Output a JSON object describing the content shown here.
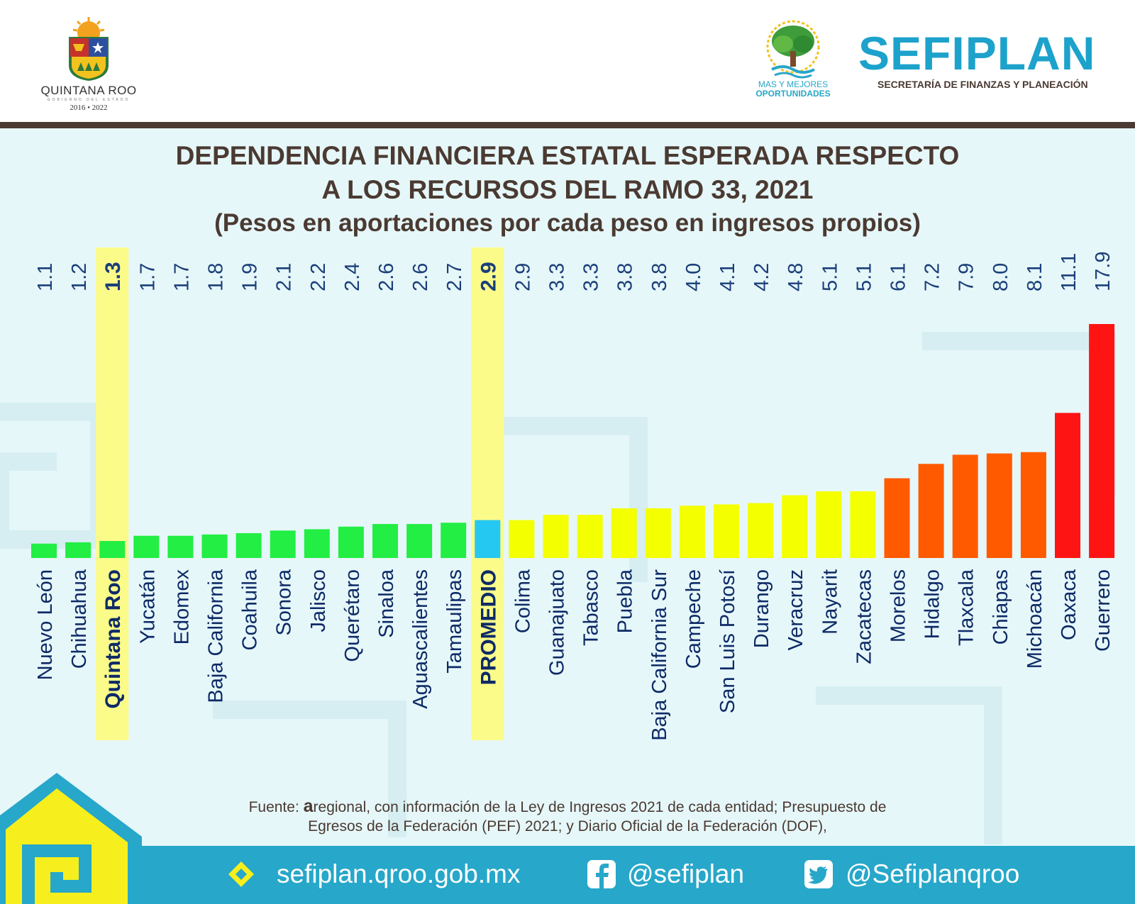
{
  "header": {
    "state_logo_name": "QUINTANA ROO",
    "state_logo_sub": "GOBIERNO DEL ESTADO",
    "state_logo_years": "2016 • 2022",
    "campaign_line1": "MAS Y MEJORES",
    "campaign_line2": "OPORTUNIDADES",
    "agency_name": "SEFIPLAN",
    "agency_subtitle": "SECRETARÍA DE FINANZAS Y PLANEACIÓN"
  },
  "colors": {
    "header_rule": "#4a3a32",
    "panel_bg": "#e6f7f9",
    "title_text": "#4a3a32",
    "value_text": "#1b3f7a",
    "label_text": "#0d2a66",
    "highlight": "#fbfb8a",
    "green": "#22ee44",
    "cyan": "#25c8f0",
    "yellow": "#f4ff00",
    "orange": "#ff5a00",
    "red": "#ff1414",
    "footer_bg": "#27a7c9"
  },
  "chart_data": {
    "type": "bar",
    "title": "DEPENDENCIA FINANCIERA ESTATAL ESPERADA RESPECTO",
    "title_line2": "A LOS RECURSOS DEL RAMO 33, 2021",
    "subtitle": "(Pesos en aportaciones por cada peso en ingresos propios)",
    "categories": [
      "Nuevo León",
      "Chihuahua",
      "Quintana Roo",
      "Yucatán",
      "Edomex",
      "Baja California",
      "Coahuila",
      "Sonora",
      "Jalisco",
      "Querétaro",
      "Sinaloa",
      "Aguascalientes",
      "Tamaulipas",
      "PROMEDIO",
      "Colima",
      "Guanajuato",
      "Tabasco",
      "Puebla",
      "Baja California Sur",
      "Campeche",
      "San Luis Potosí",
      "Durango",
      "Veracruz",
      "Nayarit",
      "Zacatecas",
      "Morelos",
      "Hidalgo",
      "Tlaxcala",
      "Chiapas",
      "Michoacán",
      "Oaxaca",
      "Guerrero"
    ],
    "values": [
      1.1,
      1.2,
      1.3,
      1.7,
      1.7,
      1.8,
      1.9,
      2.1,
      2.2,
      2.4,
      2.6,
      2.6,
      2.7,
      2.9,
      2.9,
      3.3,
      3.3,
      3.8,
      3.8,
      4.0,
      4.1,
      4.2,
      4.8,
      5.1,
      5.1,
      6.1,
      7.2,
      7.9,
      8.0,
      8.1,
      11.1,
      17.9
    ],
    "value_labels": [
      "1.1",
      "1.2",
      "1.3",
      "1.7",
      "1.7",
      "1.8",
      "1.9",
      "2.1",
      "2.2",
      "2.4",
      "2.6",
      "2.6",
      "2.7",
      "2.9",
      "2.9",
      "3.3",
      "3.3",
      "3.8",
      "3.8",
      "4.0",
      "4.1",
      "4.2",
      "4.8",
      "5.1",
      "5.1",
      "6.1",
      "7.2",
      "7.9",
      "8.0",
      "8.1",
      "11.1",
      "17.9"
    ],
    "bar_colors": [
      "green",
      "green",
      "green",
      "green",
      "green",
      "green",
      "green",
      "green",
      "green",
      "green",
      "green",
      "green",
      "green",
      "cyan",
      "yellow",
      "yellow",
      "yellow",
      "yellow",
      "yellow",
      "yellow",
      "yellow",
      "yellow",
      "yellow",
      "yellow",
      "yellow",
      "orange",
      "orange",
      "orange",
      "orange",
      "orange",
      "red",
      "red"
    ],
    "highlighted": [
      "Quintana Roo",
      "PROMEDIO"
    ],
    "ylim": [
      0,
      17.9
    ],
    "grid": false,
    "legend": "none",
    "value_label_orientation": "rotated-90"
  },
  "source": {
    "prefix": "Fuente: ",
    "brand": "a",
    "line1_rest": "regional, con información de la Ley de Ingresos 2021 de cada entidad; Presupuesto de",
    "line2": "Egresos de la Federación (PEF) 2021; y Diario Oficial de la Federación (DOF),"
  },
  "footer": {
    "website": "sefiplan.qroo.gob.mx",
    "facebook": "@sefiplan",
    "twitter": "@Sefiplanqroo",
    "website_icon": "sefiplan-logo-icon",
    "facebook_icon": "facebook-icon",
    "twitter_icon": "twitter-icon"
  }
}
